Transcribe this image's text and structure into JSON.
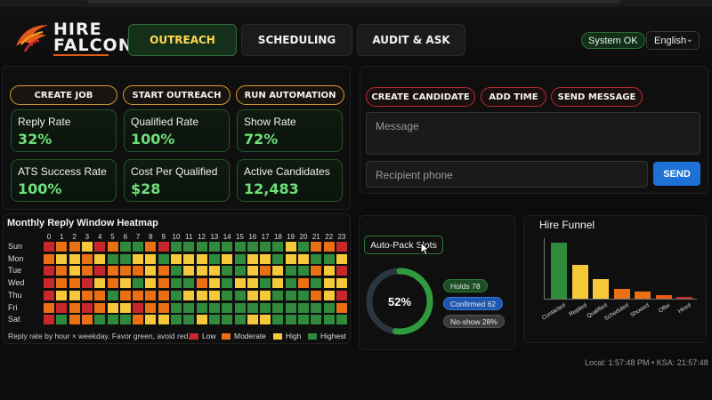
{
  "brand": {
    "line1": "HIRE",
    "line2": "FALCON"
  },
  "nav": {
    "tabs": [
      {
        "label": "OUTREACH",
        "active": true
      },
      {
        "label": "SCHEDULING",
        "active": false
      },
      {
        "label": "AUDIT & ASK",
        "active": false
      }
    ]
  },
  "header": {
    "status": "System OK",
    "language": "English"
  },
  "outreach_actions": [
    "CREATE JOB",
    "START OUTREACH",
    "RUN AUTOMATION"
  ],
  "kpis": [
    {
      "label": "Reply Rate",
      "value": "32%"
    },
    {
      "label": "Qualified Rate",
      "value": "100%"
    },
    {
      "label": "Show Rate",
      "value": "72%"
    },
    {
      "label": "ATS Success Rate",
      "value": "100%"
    },
    {
      "label": "Cost Per Qualified",
      "value": "$28"
    },
    {
      "label": "Active Candidates",
      "value": "12,483"
    }
  ],
  "message_panel": {
    "actions": [
      "CREATE CANDIDATE",
      "ADD TIME",
      "SEND MESSAGE"
    ],
    "message_placeholder": "Message",
    "phone_placeholder": "Recipient phone",
    "send_label": "SEND"
  },
  "heatmap": {
    "title": "Monthly Reply Window Heatmap",
    "hours": [
      "0",
      "1",
      "2",
      "3",
      "4",
      "5",
      "6",
      "7",
      "8",
      "9",
      "10",
      "11",
      "12",
      "13",
      "14",
      "15",
      "16",
      "17",
      "18",
      "19",
      "20",
      "21",
      "22",
      "23"
    ],
    "days": [
      "Sun",
      "Mon",
      "Tue",
      "Wed",
      "Thu",
      "Fri",
      "Sat"
    ],
    "levels_key": "0=Low,1=Moderate,2=High,3=Highest",
    "grid": [
      [
        0,
        1,
        1,
        2,
        0,
        1,
        3,
        3,
        1,
        0,
        3,
        3,
        3,
        3,
        3,
        3,
        3,
        3,
        3,
        2,
        3,
        1,
        1,
        0
      ],
      [
        1,
        2,
        2,
        1,
        2,
        3,
        3,
        2,
        2,
        3,
        2,
        2,
        2,
        3,
        2,
        3,
        2,
        2,
        3,
        2,
        2,
        3,
        3,
        2
      ],
      [
        0,
        1,
        2,
        1,
        0,
        1,
        1,
        1,
        2,
        1,
        3,
        2,
        2,
        2,
        3,
        3,
        2,
        1,
        2,
        3,
        3,
        1,
        2,
        0
      ],
      [
        0,
        1,
        1,
        0,
        2,
        1,
        2,
        3,
        2,
        1,
        3,
        3,
        1,
        2,
        3,
        2,
        2,
        3,
        2,
        3,
        1,
        3,
        2,
        2
      ],
      [
        0,
        2,
        2,
        1,
        1,
        3,
        1,
        1,
        1,
        1,
        3,
        2,
        2,
        2,
        3,
        3,
        2,
        2,
        3,
        3,
        3,
        1,
        2,
        0
      ],
      [
        1,
        0,
        1,
        0,
        1,
        2,
        2,
        0,
        1,
        1,
        3,
        3,
        3,
        3,
        3,
        3,
        3,
        3,
        3,
        3,
        3,
        3,
        3,
        1
      ],
      [
        0,
        3,
        1,
        1,
        3,
        3,
        3,
        1,
        2,
        2,
        3,
        3,
        2,
        3,
        3,
        3,
        2,
        2,
        3,
        3,
        3,
        3,
        3,
        3
      ]
    ],
    "colors": {
      "low": "#c8282b",
      "moderate": "#ea7013",
      "high": "#f6c93b",
      "highest": "#2f8a3c"
    },
    "footnote": "Reply rate by hour × weekday. Favor green, avoid red.",
    "legend": [
      "Low",
      "Moderate",
      "High",
      "Highest"
    ]
  },
  "autopack": {
    "button_label": "Auto-Pack Slots",
    "percent_label": "52%",
    "percent": 52,
    "chips": [
      {
        "label": "Holds 78",
        "color": "#1d4d24"
      },
      {
        "label": "Confirmed 62",
        "color": "#1e57b0"
      },
      {
        "label": "No-show 28%",
        "color": "#3a3a3a"
      }
    ]
  },
  "chart_data": {
    "type": "bar",
    "title": "Hire Funnel",
    "categories": [
      "Contacted",
      "Replied",
      "Qualified",
      "Scheduled",
      "Showed",
      "Offer",
      "Hired"
    ],
    "values": [
      100,
      60,
      35,
      18,
      12,
      6,
      3
    ],
    "colors": [
      "#2f8a3c",
      "#f6c93b",
      "#f6c93b",
      "#ea7013",
      "#ea7013",
      "#ea5a10",
      "#c8282b"
    ]
  },
  "footer": {
    "clock": "Local: 1:57:48 PM • KSA: 21:57:48"
  }
}
